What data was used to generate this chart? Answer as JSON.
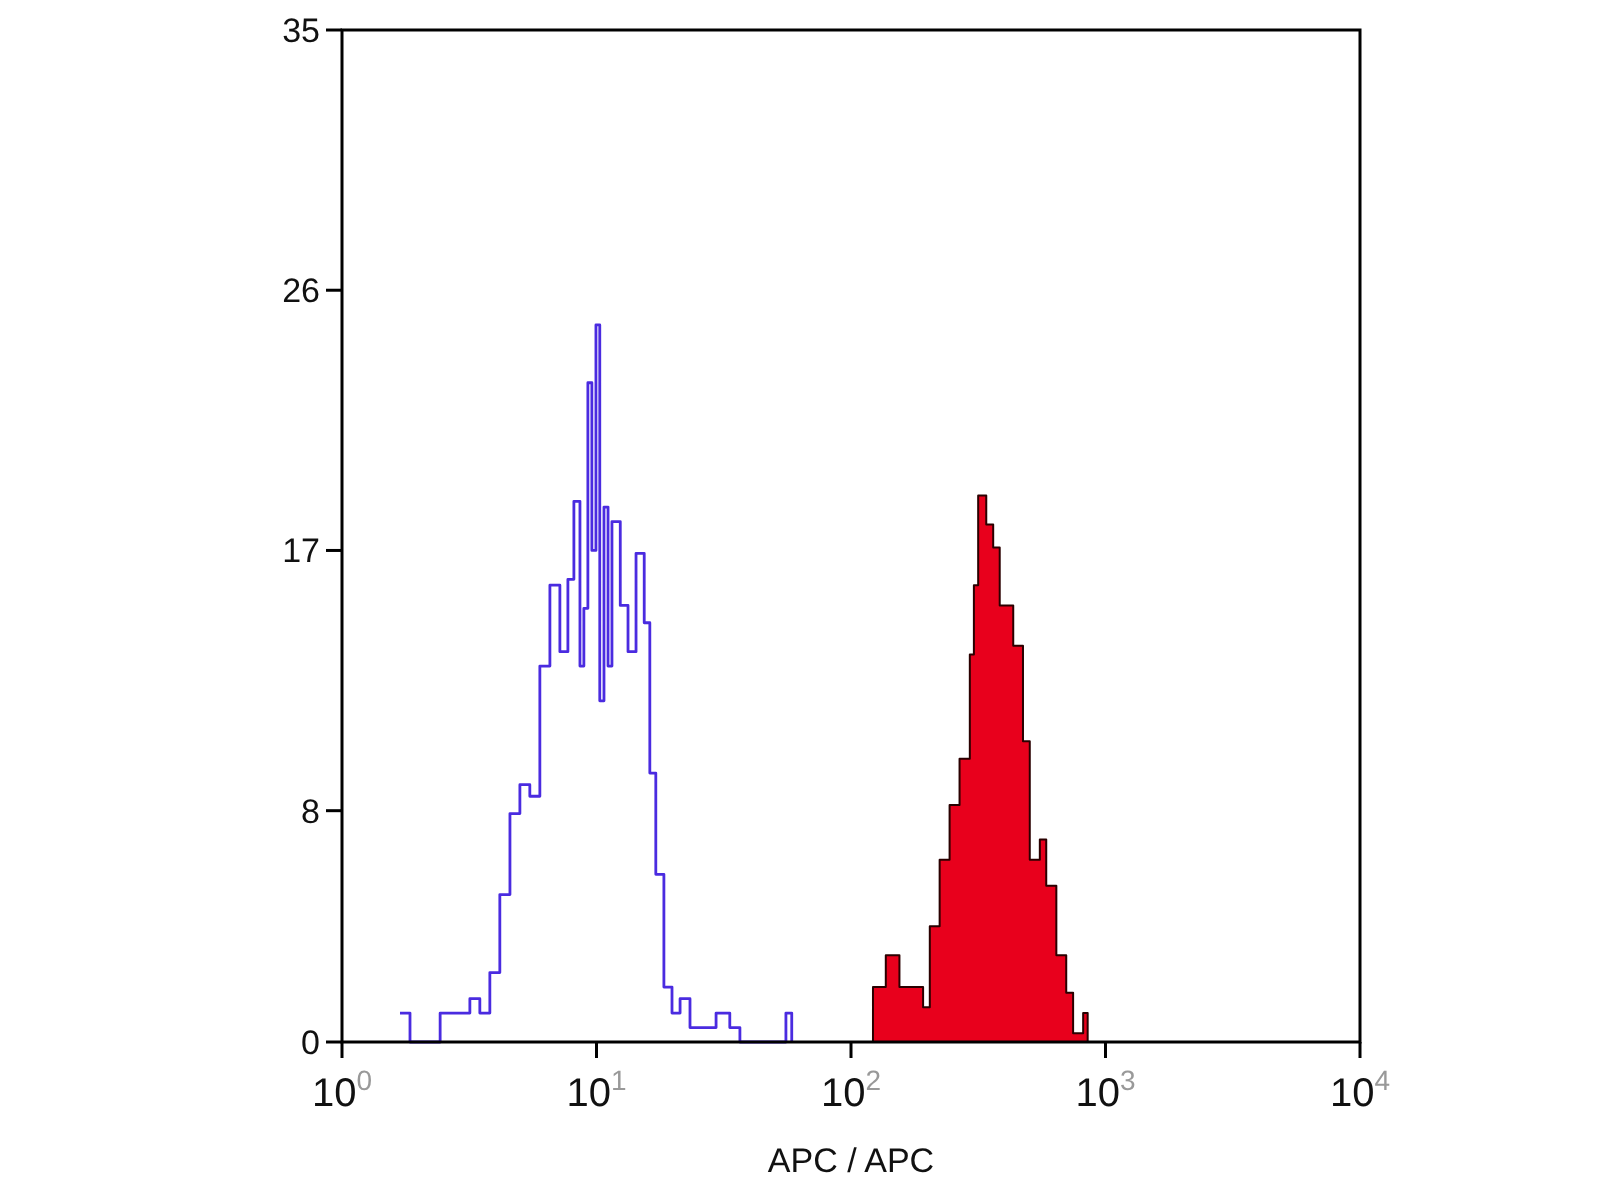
{
  "chart_data": {
    "type": "step",
    "xlabel": "APC / APC",
    "log": "x",
    "xlim": [
      1,
      10000
    ],
    "ylim": [
      0,
      35
    ],
    "xticks": [
      {
        "value": 1,
        "label": "10$^{0}$"
      },
      {
        "value": 10,
        "label": "10$^{1}$"
      },
      {
        "value": 100,
        "label": "10$^{2}$"
      },
      {
        "value": 1000,
        "label": "10$^{3}$"
      },
      {
        "value": 10000,
        "label": "10$^{4}$"
      }
    ],
    "yticks": [
      0,
      8,
      17,
      26,
      35
    ],
    "grid": false,
    "series": [
      {
        "color": "#4a2be0",
        "x": [
          1.69,
          1.85,
          2.02,
          2.43,
          2.8,
          3.18,
          3.48,
          3.81,
          4.17,
          4.57,
          5.0,
          5.47,
          5.99,
          6.56,
          7.18,
          7.72,
          8.15,
          8.61,
          8.92,
          9.25,
          9.59,
          9.95,
          10.3,
          10.7,
          11.1,
          11.5,
          12.4,
          13.3,
          14.3,
          15.4,
          16.2,
          17.1,
          18.4,
          19.8,
          21.3,
          23.3,
          25.5,
          29.5,
          33.4,
          36.6,
          52.5,
          55.5,
          58.5
        ],
        "values": [
          1,
          0,
          0,
          1,
          1,
          1.5,
          1,
          2.4,
          5.1,
          7.9,
          8.9,
          8.5,
          13,
          15.8,
          13.5,
          16,
          18.7,
          13,
          15,
          22.8,
          17,
          24.8,
          11.8,
          18.5,
          13,
          18,
          15.1,
          13.5,
          16.9,
          14.5,
          9.3,
          5.8,
          1.9,
          1,
          1.5,
          0.5,
          0.5,
          1,
          0.5,
          0,
          0,
          1,
          0
        ]
      },
      {
        "type": "area",
        "color": "#e8001c",
        "x": [
          108,
          122,
          137,
          155,
          175,
          192,
          204,
          223,
          244,
          267,
          293,
          304,
          316,
          340,
          362,
          384,
          434,
          474,
          504,
          552,
          585,
          641,
          701,
          746,
          817,
          851
        ],
        "values": [
          0,
          1.9,
          3.0,
          1.9,
          1.9,
          1.2,
          4.0,
          6.3,
          8.2,
          9.8,
          13.4,
          15.8,
          18.9,
          17.9,
          17.1,
          15.1,
          13.7,
          10.4,
          6.3,
          7.0,
          5.4,
          3.0,
          1.7,
          0.3,
          1,
          0
        ]
      }
    ]
  }
}
